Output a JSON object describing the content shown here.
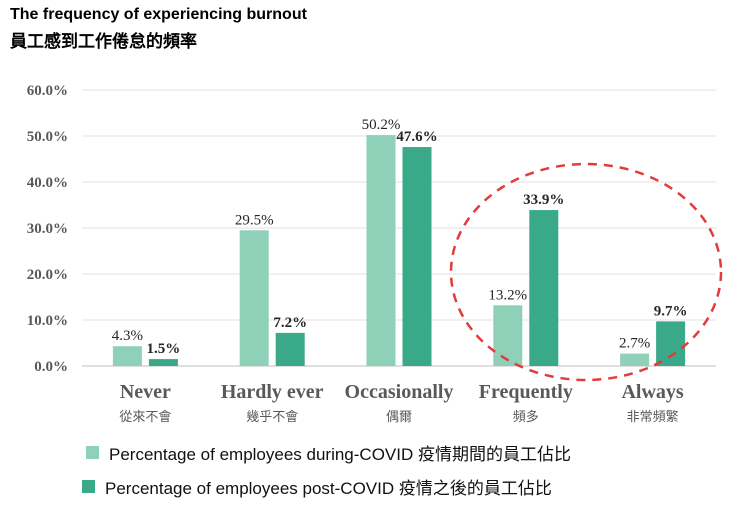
{
  "title_en": "The frequency of experiencing burnout",
  "title_zh": "員工感到工作倦怠的頻率",
  "chart_data": {
    "type": "bar",
    "categories": [
      "Never",
      "Hardly ever",
      "Occasionally",
      "Frequently",
      "Always"
    ],
    "categories_zh": [
      "從來不會",
      "幾乎不會",
      "偶爾",
      "頻多",
      "非常頻繁"
    ],
    "series": [
      {
        "name": "Percentage of employees during-COVID 疫情期間的員工佔比",
        "values": [
          4.3,
          29.5,
          50.2,
          13.2,
          2.7
        ],
        "labels": [
          "4.3%",
          "29.5%",
          "50.2%",
          "13.2%",
          "2.7%"
        ],
        "color": "#8fd1b8"
      },
      {
        "name": "Percentage of employees post-COVID 疫情之後的員工佔比",
        "values": [
          1.5,
          7.2,
          47.6,
          33.9,
          9.7
        ],
        "labels": [
          "1.5%",
          "7.2%",
          "47.6%",
          "33.9%",
          "9.7%"
        ],
        "color": "#3aa98a"
      }
    ],
    "yticks": [
      "0.0%",
      "10.0%",
      "20.0%",
      "30.0%",
      "40.0%",
      "50.0%",
      "60.0%"
    ],
    "ylim": [
      0,
      60
    ],
    "grid": true,
    "legend_position": "bottom",
    "highlight": "Frequently and Always circled with red dashed ellipse",
    "highlight_color": "#e23b3b"
  },
  "legend": {
    "item1": "Percentage of employees during-COVID 疫情期間的員工佔比",
    "item2": "Percentage of employees post-COVID 疫情之後的員工佔比"
  }
}
